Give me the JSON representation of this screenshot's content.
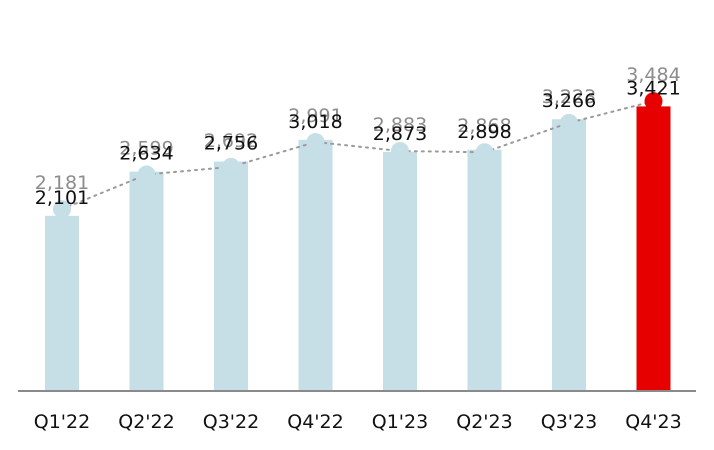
{
  "chart_data": {
    "type": "bar",
    "categories": [
      "Q1'22",
      "Q2'22",
      "Q3'22",
      "Q4'22",
      "Q1'23",
      "Q2'23",
      "Q3'23",
      "Q4'23"
    ],
    "series": [
      {
        "kind": "bar",
        "values": [
          2101,
          2634,
          2756,
          3018,
          2873,
          2898,
          3266,
          3421
        ],
        "labels": [
          "2,101",
          "2,634",
          "2,756",
          "3,018",
          "2,873",
          "2,898",
          "3,266",
          "3,421"
        ]
      },
      {
        "kind": "line",
        "style": "dotted",
        "values": [
          2181,
          2599,
          2692,
          2991,
          2883,
          2868,
          3223,
          3484
        ],
        "labels": [
          "2,181",
          "2,599",
          "2,692",
          "2,991",
          "2,883",
          "2,868",
          "3,223",
          "3,484"
        ]
      }
    ],
    "title": "",
    "xlabel": "",
    "ylabel": "",
    "ylim": [
      0,
      3600
    ],
    "grid": false,
    "legend": "none",
    "colors": {
      "bar": "#c6dfe6",
      "bar_highlight": "#e60000",
      "line_marker": "#c6dfe6",
      "line_marker_highlight": "#e60000",
      "line": "#9a9a9a",
      "axis": "#8a8a8a"
    },
    "highlight_index": 7
  }
}
